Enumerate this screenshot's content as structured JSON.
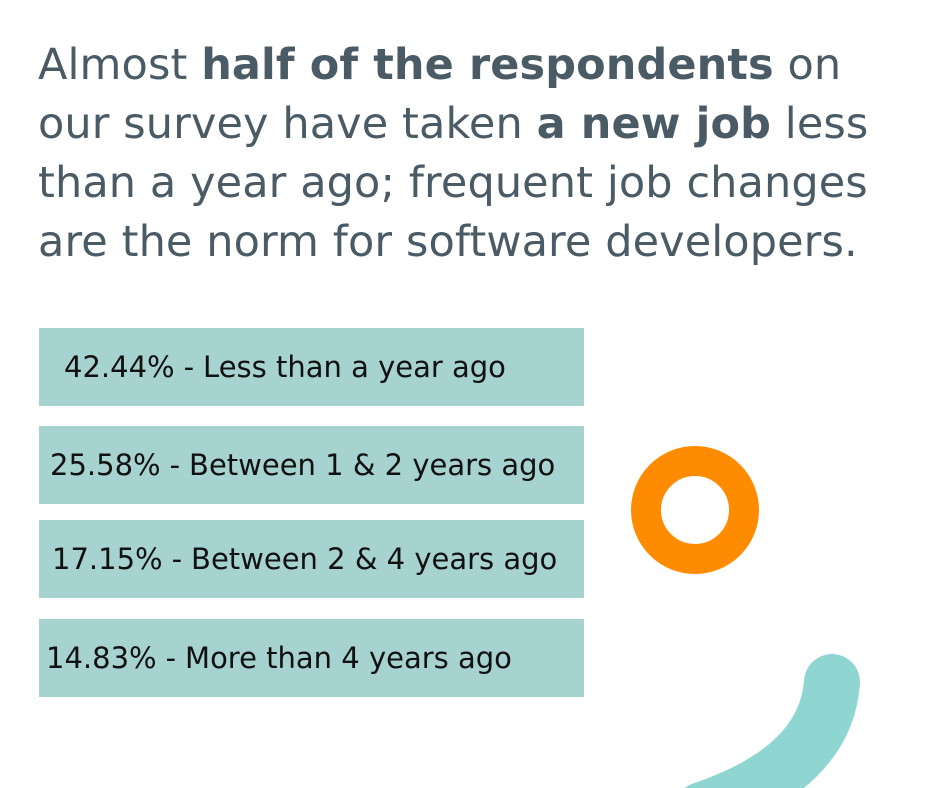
{
  "headline": {
    "part1": "Almost ",
    "bold1": "half of the respondents",
    "part2": " on our survey have taken ",
    "bold2": "a new job",
    "part3": " less than a year ago; frequent job changes are the norm for software developers."
  },
  "answers": [
    {
      "percent": "42.44%",
      "separator": "-",
      "label": "Less than a year ago"
    },
    {
      "percent": "25.58%",
      "separator": "-",
      "label": "Between 1 & 2 years ago"
    },
    {
      "percent": "17.15%",
      "separator": "-",
      "label": "Between 2 & 4 years ago"
    },
    {
      "percent": "14.83%",
      "separator": "-",
      "label": "More than 4 years ago"
    }
  ],
  "colors": {
    "row_background": "#a6d2d0",
    "headline_text": "#4a5b66",
    "ring": "#ff8c00",
    "arc": "#8fd6d3"
  },
  "icons": {
    "ring": "orange-ring-icon",
    "arc": "teal-arc-icon"
  }
}
